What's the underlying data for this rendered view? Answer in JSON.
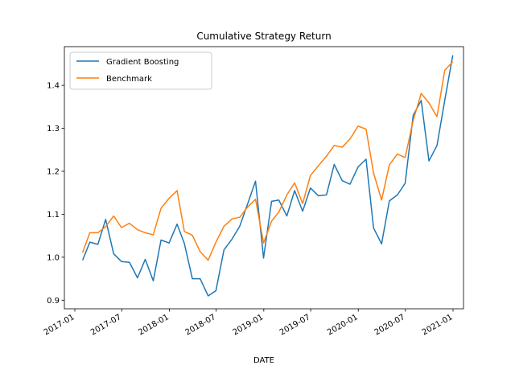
{
  "chart_data": {
    "type": "line",
    "title": "Cumulative Strategy Return",
    "xlabel": "DATE",
    "ylabel": "",
    "xlim": [
      "2017-01-01",
      "2021-01-01"
    ],
    "ylim": [
      0.88,
      1.49
    ],
    "x_ticks": [
      "2017-01",
      "2017-07",
      "2018-01",
      "2018-07",
      "2019-01",
      "2019-07",
      "2020-01",
      "2020-07",
      "2021-01"
    ],
    "y_ticks": [
      0.9,
      1.0,
      1.1,
      1.2,
      1.3,
      1.4
    ],
    "legend_position": "top-left",
    "grid": false,
    "x": [
      "2017-01-31",
      "2017-02-28",
      "2017-03-31",
      "2017-04-30",
      "2017-05-31",
      "2017-06-30",
      "2017-07-31",
      "2017-08-31",
      "2017-09-30",
      "2017-10-31",
      "2017-11-30",
      "2017-12-31",
      "2018-01-31",
      "2018-02-28",
      "2018-03-31",
      "2018-04-30",
      "2018-05-31",
      "2018-06-30",
      "2018-07-31",
      "2018-08-31",
      "2018-09-30",
      "2018-10-31",
      "2018-11-30",
      "2018-12-31",
      "2019-01-31",
      "2019-02-28",
      "2019-03-31",
      "2019-04-30",
      "2019-05-31",
      "2019-06-30",
      "2019-07-31",
      "2019-08-31",
      "2019-09-30",
      "2019-10-31",
      "2019-11-30",
      "2019-12-31",
      "2020-01-31",
      "2020-02-29",
      "2020-03-31",
      "2020-04-30",
      "2020-05-31",
      "2020-06-30",
      "2020-07-31",
      "2020-08-31",
      "2020-09-30",
      "2020-10-31",
      "2020-11-30",
      "2020-12-31"
    ],
    "series": [
      {
        "name": "Gradient Boosting",
        "color": "#1f77b4",
        "values": [
          0.993,
          1.035,
          1.03,
          1.088,
          1.008,
          0.99,
          0.988,
          0.952,
          0.995,
          0.945,
          1.04,
          1.033,
          1.077,
          1.032,
          0.95,
          0.95,
          0.91,
          0.922,
          1.017,
          1.042,
          1.072,
          1.125,
          1.177,
          0.998,
          1.13,
          1.133,
          1.096,
          1.155,
          1.107,
          1.161,
          1.143,
          1.145,
          1.216,
          1.178,
          1.17,
          1.21,
          1.228,
          1.068,
          1.031,
          1.131,
          1.145,
          1.172,
          1.33,
          1.365,
          1.224,
          1.26,
          1.365,
          1.47
        ]
      },
      {
        "name": "Benchmark",
        "color": "#ff7f0e",
        "values": [
          1.011,
          1.057,
          1.057,
          1.071,
          1.096,
          1.069,
          1.079,
          1.064,
          1.057,
          1.052,
          1.114,
          1.137,
          1.155,
          1.06,
          1.051,
          1.013,
          0.993,
          1.035,
          1.072,
          1.089,
          1.093,
          1.117,
          1.135,
          1.033,
          1.084,
          1.105,
          1.145,
          1.173,
          1.125,
          1.19,
          1.213,
          1.235,
          1.26,
          1.256,
          1.275,
          1.305,
          1.298,
          1.196,
          1.133,
          1.215,
          1.24,
          1.232,
          1.318,
          1.381,
          1.359,
          1.327,
          1.435,
          1.455
        ]
      }
    ]
  }
}
